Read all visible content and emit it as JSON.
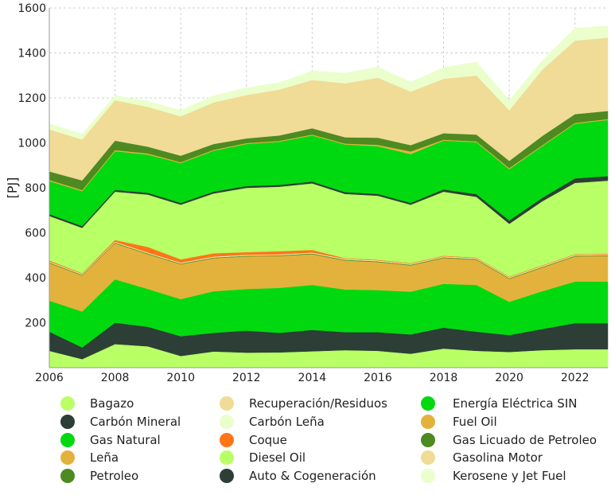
{
  "chart_data": {
    "type": "area",
    "stacked": true,
    "title": "",
    "xlabel": "",
    "ylabel": "[PJ]",
    "xlim": [
      2006,
      2023
    ],
    "ylim": [
      0,
      1600
    ],
    "xticks": [
      "2006",
      "2008",
      "2010",
      "2012",
      "2014",
      "2016",
      "2018",
      "2020",
      "2022"
    ],
    "yticks": [
      "200",
      "400",
      "600",
      "800",
      "1000",
      "1200",
      "1400",
      "1600"
    ],
    "grid": true,
    "legend_position": "bottom",
    "x": [
      2006,
      2007,
      2008,
      2009,
      2010,
      2011,
      2012,
      2013,
      2014,
      2015,
      2016,
      2017,
      2018,
      2019,
      2020,
      2021,
      2022,
      2023
    ],
    "series": [
      {
        "name": "Bagazo",
        "color": "#b9ff66",
        "values": [
          75,
          38,
          105,
          95,
          52,
          72,
          67,
          68,
          73,
          78,
          75,
          62,
          85,
          75,
          70,
          78,
          82,
          82
        ]
      },
      {
        "name": "Carbón Mineral",
        "color": "#2c3e36",
        "values": [
          85,
          52,
          95,
          87,
          88,
          83,
          98,
          87,
          95,
          80,
          83,
          86,
          93,
          85,
          75,
          94,
          116,
          116
        ]
      },
      {
        "name": "Gas Natural",
        "color": "#00d90f",
        "values": [
          138,
          160,
          193,
          168,
          165,
          185,
          185,
          200,
          200,
          190,
          187,
          190,
          195,
          208,
          148,
          168,
          185,
          185
        ]
      },
      {
        "name": "Leña",
        "color": "#e3b23c",
        "values": [
          167,
          160,
          160,
          155,
          155,
          147,
          145,
          142,
          137,
          129,
          125,
          117,
          115,
          112,
          102,
          105,
          112,
          114
        ]
      },
      {
        "name": "Petroleo",
        "color": "#4e8a22",
        "values": [
          3,
          3,
          3,
          3,
          3,
          3,
          3,
          3,
          3,
          3,
          3,
          3,
          3,
          3,
          3,
          3,
          3,
          3
        ]
      },
      {
        "name": "Recuperación/Residuos",
        "color": "#f0dc96",
        "values": [
          2,
          2,
          2,
          2,
          2,
          2,
          2,
          2,
          2,
          2,
          2,
          2,
          2,
          2,
          2,
          2,
          2,
          2
        ]
      },
      {
        "name": "Carbón Leña",
        "color": "#eaffcc",
        "values": [
          2,
          2,
          2,
          2,
          2,
          2,
          2,
          2,
          2,
          2,
          2,
          2,
          2,
          2,
          2,
          2,
          2,
          2
        ]
      },
      {
        "name": "Coque",
        "color": "#ff7518",
        "values": [
          5,
          3,
          8,
          25,
          15,
          15,
          12,
          14,
          12,
          3,
          3,
          3,
          3,
          3,
          3,
          3,
          3,
          3
        ]
      },
      {
        "name": "Diesel Oil",
        "color": "#b9ff66",
        "values": [
          198,
          202,
          215,
          233,
          243,
          266,
          286,
          287,
          296,
          286,
          285,
          260,
          285,
          270,
          235,
          285,
          317,
          325
        ]
      },
      {
        "name": "Auto & Cogeneración",
        "color": "#2c3e36",
        "values": [
          8,
          8,
          8,
          8,
          8,
          8,
          8,
          8,
          8,
          8,
          8,
          8,
          10,
          12,
          15,
          15,
          20,
          20
        ]
      },
      {
        "name": "Energía Eléctrica SIN",
        "color": "#00d90f",
        "values": [
          147,
          155,
          172,
          170,
          177,
          182,
          187,
          192,
          205,
          212,
          212,
          217,
          217,
          231,
          228,
          230,
          243,
          250
        ]
      },
      {
        "name": "Fuel Oil",
        "color": "#e3b23c",
        "values": [
          5,
          5,
          5,
          5,
          4,
          4,
          4,
          4,
          4,
          4,
          6,
          12,
          4,
          4,
          5,
          4,
          4,
          4
        ]
      },
      {
        "name": "Gas Licuado de Petroleo",
        "color": "#4e8a22",
        "values": [
          38,
          43,
          42,
          30,
          29,
          26,
          21,
          24,
          28,
          28,
          32,
          28,
          29,
          30,
          32,
          41,
          39,
          36
        ]
      },
      {
        "name": "Gasolina Motor",
        "color": "#f0dc96",
        "values": [
          187,
          182,
          180,
          177,
          175,
          185,
          193,
          204,
          215,
          240,
          267,
          238,
          242,
          263,
          225,
          295,
          327,
          326
        ]
      },
      {
        "name": "Kerosene y Jet Fuel",
        "color": "#eaffcc",
        "values": [
          25,
          25,
          20,
          25,
          27,
          30,
          32,
          31,
          40,
          45,
          48,
          42,
          50,
          60,
          45,
          40,
          55,
          52
        ]
      }
    ]
  }
}
